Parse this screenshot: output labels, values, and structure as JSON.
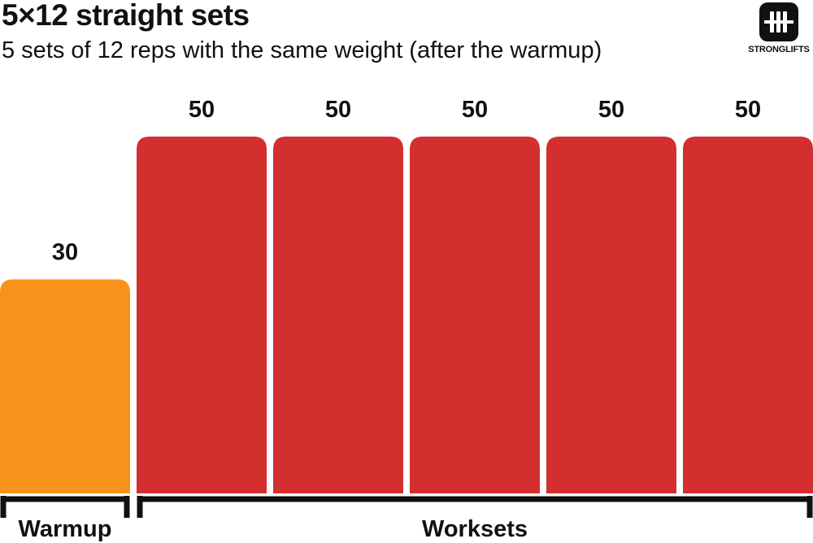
{
  "header": {
    "title": "5×12 straight sets",
    "subtitle": "5 sets of 12 reps with the same weight (after the warmup)"
  },
  "brand": {
    "name": "STRONGLIFTS",
    "icon": "barbell-icon"
  },
  "chart_data": {
    "type": "bar",
    "categories": [
      "",
      "",
      "",
      "",
      "",
      ""
    ],
    "values": [
      30,
      50,
      50,
      50,
      50,
      50
    ],
    "colors": [
      "#f7931a",
      "#d32f2f",
      "#d32f2f",
      "#d32f2f",
      "#d32f2f",
      "#d32f2f"
    ],
    "data_labels": [
      "30",
      "50",
      "50",
      "50",
      "50",
      "50"
    ],
    "ylim": [
      0,
      50
    ],
    "grid": false,
    "groups": [
      {
        "label": "Warmup",
        "first_index": 0,
        "last_index": 0
      },
      {
        "label": "Worksets",
        "first_index": 1,
        "last_index": 5
      }
    ]
  }
}
